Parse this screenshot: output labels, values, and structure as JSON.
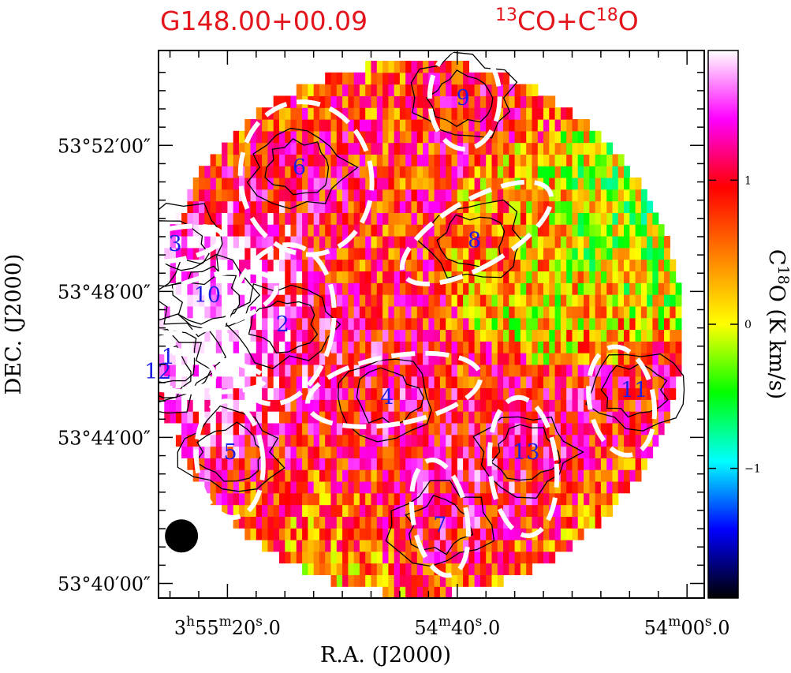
{
  "chart_data": {
    "type": "heatmap",
    "title_left": "G148.00+00.09",
    "title_right": {
      "base": "CO+C",
      "iso1": "13",
      "iso2": "18",
      "tail": "O"
    },
    "xlabel": "R.A. (J2000)",
    "ylabel": "DEC. (J2000)",
    "colorbar": {
      "label": {
        "pre": "C",
        "sup": "18",
        "post": "O  (K km/s)"
      },
      "range": [
        -1.9,
        1.9
      ],
      "ticks": [
        {
          "value": 1,
          "label": "1"
        },
        {
          "value": 0,
          "label": "0"
        },
        {
          "value": -1,
          "label": "−1"
        }
      ],
      "colormap": [
        "#000000",
        "#0000ff",
        "#00ffff",
        "#00ff00",
        "#ffff00",
        "#ff8000",
        "#ff0000",
        "#ff00ff",
        "#ffffff"
      ]
    },
    "x_ticks": [
      {
        "value": 0.0,
        "label_h": "3",
        "label_m": "55",
        "label_s": "20.0"
      },
      {
        "value": 40.0,
        "label_h": "",
        "label_m": "54",
        "label_s": "40.0"
      },
      {
        "value": 80.0,
        "label_h": "",
        "label_m": "54",
        "label_s": "00.0"
      }
    ],
    "y_ticks": [
      {
        "value": 52,
        "label": "53°52′00″"
      },
      {
        "value": 48,
        "label": "53°48′00″"
      },
      {
        "value": 44,
        "label": "53°44′00″"
      },
      {
        "value": 40,
        "label": "53°40′00″"
      }
    ],
    "x_unit": "seconds of R.A. past 3h55m20s",
    "y_unit": "arcmin of Dec. past 53°",
    "xlim": [
      -12.0,
      83.0
    ],
    "ylim": [
      39.6,
      54.6
    ],
    "beam": {
      "x": -8.0,
      "y": 41.3,
      "diameter_arcmin": 0.92
    },
    "grid": false,
    "cores": [
      {
        "id": "1",
        "x": -10.3,
        "y": 46.2
      },
      {
        "id": "2",
        "x": 9.6,
        "y": 47.1
      },
      {
        "id": "3",
        "x": -9.1,
        "y": 49.3
      },
      {
        "id": "4",
        "x": 27.8,
        "y": 45.1
      },
      {
        "id": "5",
        "x": 0.5,
        "y": 43.6
      },
      {
        "id": "6",
        "x": 12.5,
        "y": 51.4
      },
      {
        "id": "7",
        "x": 37.0,
        "y": 41.6
      },
      {
        "id": "8",
        "x": 43.0,
        "y": 49.4
      },
      {
        "id": "9",
        "x": 41.0,
        "y": 53.3
      },
      {
        "id": "10",
        "x": -3.5,
        "y": 47.9
      },
      {
        "id": "11",
        "x": 70.8,
        "y": 45.3
      },
      {
        "id": "12",
        "x": -12.1,
        "y": 45.8
      },
      {
        "id": "13",
        "x": 52.0,
        "y": 43.6
      }
    ],
    "ellipses": [
      {
        "cx": -9.9,
        "cy": 45.8,
        "rx": 3.3,
        "ry": 2.6,
        "rot": -85
      },
      {
        "cx": 9.2,
        "cy": 47.1,
        "rx": 9.2,
        "ry": 2.2,
        "rot": 10
      },
      {
        "cx": -9.0,
        "cy": 49.3,
        "rx": 2.8,
        "ry": 1.3,
        "rot": 80
      },
      {
        "cx": 29.0,
        "cy": 45.3,
        "rx": 5.9,
        "ry": 2.4,
        "rot": 80
      },
      {
        "cx": 0.4,
        "cy": 43.4,
        "rx": 5.8,
        "ry": 1.6,
        "rot": -5
      },
      {
        "cx": 13.7,
        "cy": 51.1,
        "rx": 11.4,
        "ry": 2.1,
        "rot": -10
      },
      {
        "cx": 37.0,
        "cy": 41.8,
        "rx": 4.7,
        "ry": 1.6,
        "rot": -10
      },
      {
        "cx": 43.4,
        "cy": 49.6,
        "rx": 5.8,
        "ry": 2.3,
        "rot": 60
      },
      {
        "cx": 41.3,
        "cy": 53.3,
        "rx": 6.1,
        "ry": 1.4,
        "rot": 0
      },
      {
        "cx": -3.2,
        "cy": 47.7,
        "rx": 4.5,
        "ry": 1.9,
        "rot": 75
      },
      {
        "cx": 68.6,
        "cy": 45.0,
        "rx": 5.6,
        "ry": 1.5,
        "rot": -10
      },
      {
        "cx": -10.4,
        "cy": 45.9,
        "rx": 3.4,
        "ry": 1.3,
        "rot": -80
      },
      {
        "cx": 51.5,
        "cy": 43.2,
        "rx": 5.8,
        "ry": 1.9,
        "rot": -5
      }
    ],
    "field_circle": {
      "cx": 32.9,
      "cy": 47.0,
      "radius_arcmin": 7.3
    }
  }
}
